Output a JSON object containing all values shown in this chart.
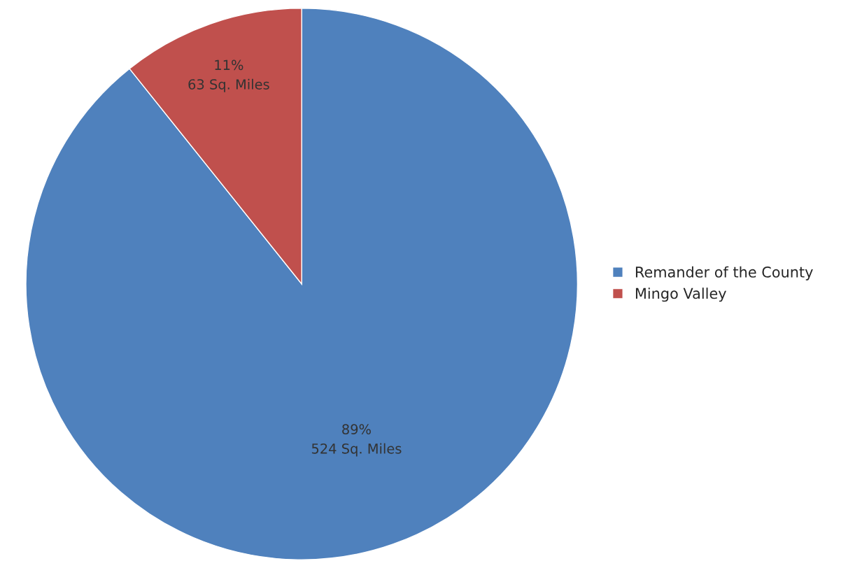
{
  "chart_data": {
    "type": "pie",
    "categories": [
      "Remander of the County",
      "Mingo Valley"
    ],
    "values": [
      524,
      63
    ],
    "colors": [
      "#4f81bd",
      "#c0504d"
    ],
    "value_labels": [
      "89%\n524 Sq. Miles",
      "11%\n63 Sq. Miles"
    ],
    "legend": "right"
  }
}
